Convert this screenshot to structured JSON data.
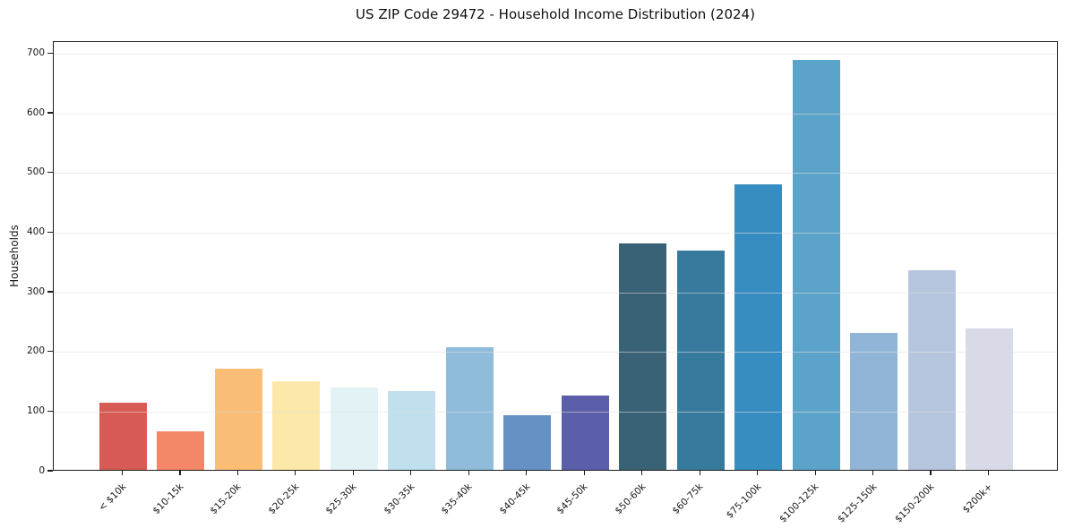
{
  "chart_data": {
    "type": "bar",
    "title": "US ZIP Code 29472 - Household Income Distribution (2024)",
    "xlabel": "",
    "ylabel": "Households",
    "categories": [
      "< $10k",
      "$10-15k",
      "$15-20k",
      "$20-25k",
      "$25-30k",
      "$30-35k",
      "$35-40k",
      "$40-45k",
      "$45-50k",
      "$50-60k",
      "$60-75k",
      "$75-100k",
      "$100-125k",
      "$125-150k",
      "$150-200k",
      "$200k+"
    ],
    "values": [
      113,
      65,
      170,
      148,
      138,
      132,
      205,
      92,
      125,
      380,
      368,
      478,
      687,
      230,
      334,
      237
    ],
    "bar_colors": [
      "#d75b54",
      "#f38767",
      "#fabd76",
      "#fce8a8",
      "#e3f2f4",
      "#bfe0ec",
      "#8fbcdb",
      "#6591c4",
      "#5b5ea8",
      "#3a6276",
      "#377a9e",
      "#388dc0",
      "#5ba3c9",
      "#90b5d6",
      "#b6c5de",
      "#d8dae7"
    ],
    "yticks": [
      0,
      100,
      200,
      300,
      400,
      500,
      600,
      700
    ],
    "ylim": [
      0,
      720
    ],
    "grid": "horizontal-only",
    "legend_position": "none",
    "x_tick_label_rotation_deg": 45
  },
  "colors": {
    "background": "#ffffff",
    "axis_spine": "#1b1b1b",
    "gridline": "#e5e5e5",
    "text": "#161616"
  }
}
